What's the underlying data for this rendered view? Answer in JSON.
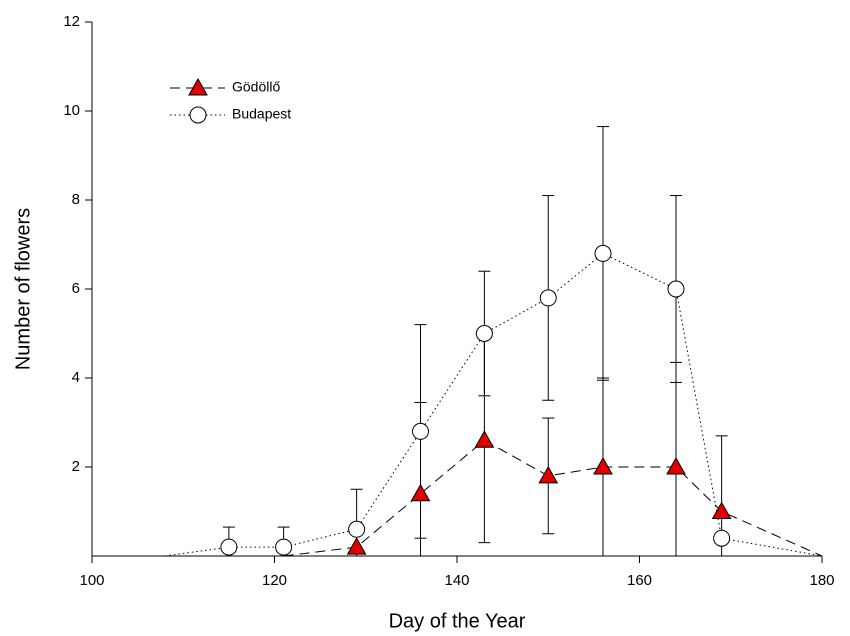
{
  "chart_data": {
    "type": "line",
    "x_label": "Day of the Year",
    "y_label": "Number of flowers",
    "xlim": [
      100,
      180
    ],
    "xticks": [
      100,
      120,
      140,
      160,
      180
    ],
    "ylim": [
      0,
      12
    ],
    "yticks": [
      2,
      4,
      6,
      8,
      10,
      12
    ],
    "series": [
      {
        "name": "Gödöllő",
        "color": "#e00000",
        "marker": "triangle",
        "dash": "dashed",
        "x": [
          121,
          129,
          136,
          143,
          150,
          156,
          164,
          169,
          180
        ],
        "values": [
          0,
          0.2,
          1.4,
          2.6,
          1.8,
          2.0,
          2.0,
          1.0,
          0
        ],
        "errors": [
          null,
          null,
          2.05,
          2.3,
          1.3,
          2.0,
          2.35,
          1.7,
          null
        ]
      },
      {
        "name": "Budapest",
        "color": "#ffffff",
        "marker": "circle",
        "dash": "dotted",
        "x": [
          108,
          115,
          121,
          129,
          136,
          143,
          150,
          156,
          164,
          169,
          180
        ],
        "values": [
          0,
          0.2,
          0.2,
          0.6,
          2.8,
          5.0,
          5.8,
          6.8,
          6.0,
          0.4,
          0
        ],
        "errors": [
          null,
          0.45,
          0.45,
          0.9,
          2.4,
          1.4,
          2.3,
          2.85,
          2.1,
          null,
          null
        ]
      }
    ]
  }
}
